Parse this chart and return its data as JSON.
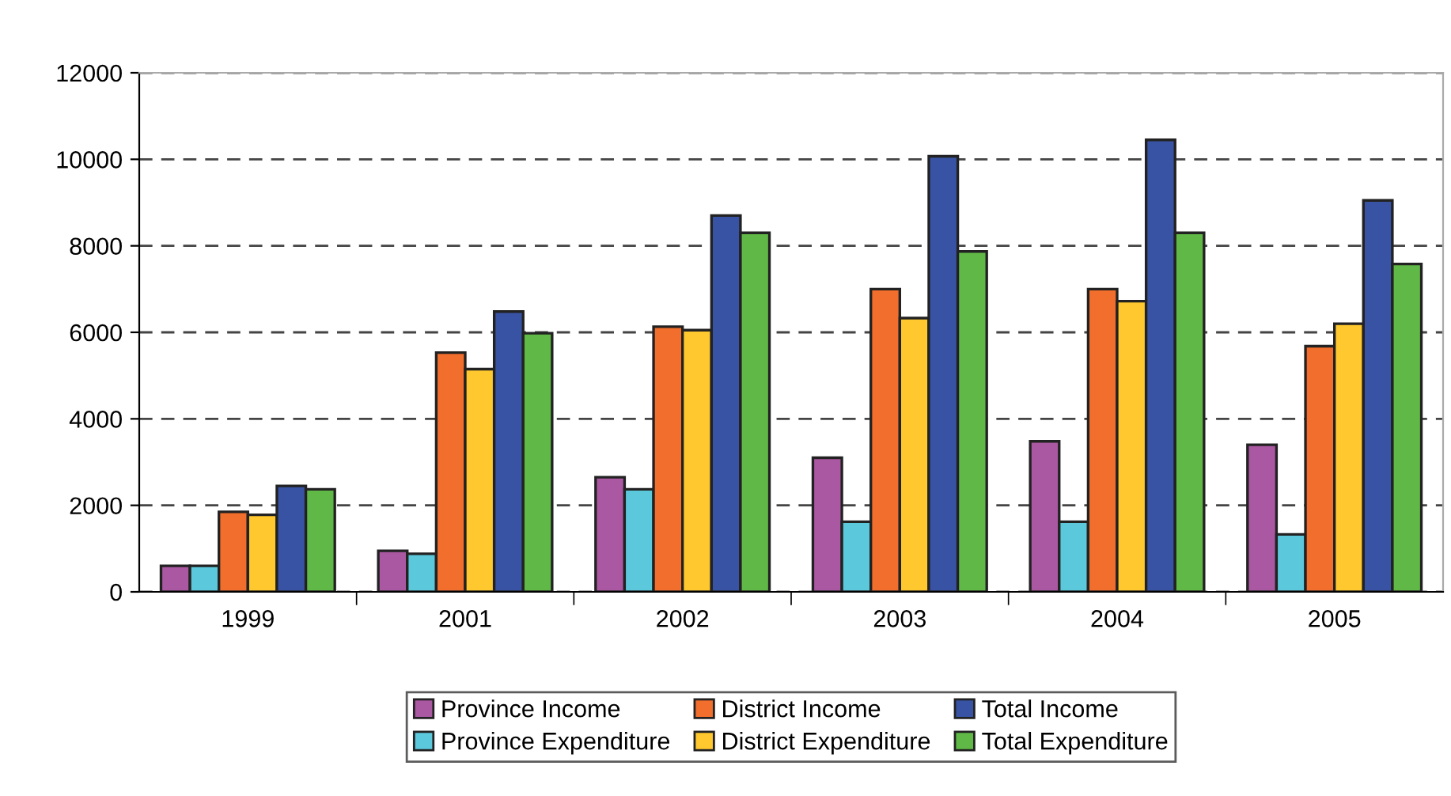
{
  "chart_data": {
    "type": "bar",
    "categories": [
      "1999",
      "2001",
      "2002",
      "2003",
      "2004",
      "2005"
    ],
    "series": [
      {
        "name": "Province Income",
        "color": "#ab58a2",
        "values": [
          600,
          950,
          2650,
          3100,
          3480,
          3400
        ]
      },
      {
        "name": "Province Expenditure",
        "color": "#5cc8dc",
        "values": [
          600,
          880,
          2370,
          1620,
          1620,
          1330
        ]
      },
      {
        "name": "District Income",
        "color": "#f26e2c",
        "values": [
          1850,
          5530,
          6130,
          7000,
          7000,
          5680
        ]
      },
      {
        "name": "District Expenditure",
        "color": "#ffc82e",
        "values": [
          1780,
          5150,
          6050,
          6330,
          6720,
          6200
        ]
      },
      {
        "name": "Total Income",
        "color": "#3853a3",
        "values": [
          2450,
          6480,
          8700,
          10070,
          10450,
          9050
        ]
      },
      {
        "name": "Total Expenditure",
        "color": "#60b946",
        "values": [
          2370,
          5980,
          8300,
          7870,
          8300,
          7580
        ]
      }
    ],
    "ylim": [
      0,
      12000
    ],
    "yticks": [
      0,
      2000,
      4000,
      6000,
      8000,
      10000,
      12000
    ],
    "grid": "y",
    "legend": "bottom"
  }
}
